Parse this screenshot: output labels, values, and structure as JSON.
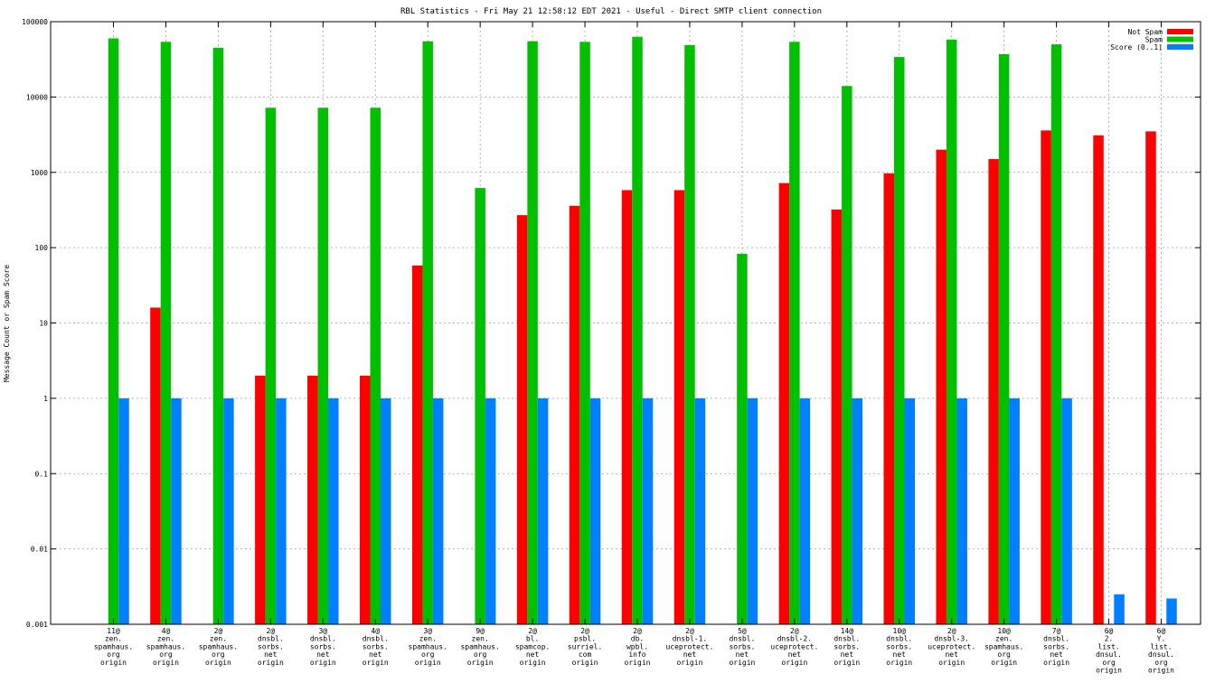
{
  "chart_data": {
    "type": "bar",
    "title": "RBL Statistics - Fri May 21 12:58:12 EDT 2021 - Useful - Direct SMTP client connection",
    "xlabel": "",
    "ylabel": "Message Count or Spam Score",
    "yscale": "log",
    "ylim": [
      0.001,
      100000
    ],
    "yticks": [
      "0.001",
      "0.01",
      "0.1",
      "1",
      "10",
      "100",
      "1000",
      "10000",
      "100000"
    ],
    "grid": true,
    "legend_position": "top-right",
    "categories": [
      [
        "11@",
        "zen.",
        "spamhaus.",
        "org",
        "origin"
      ],
      [
        "4@",
        "zen.",
        "spamhaus.",
        "org",
        "origin"
      ],
      [
        "2@",
        "zen.",
        "spamhaus.",
        "org",
        "origin"
      ],
      [
        "2@",
        "dnsbl.",
        "sorbs.",
        "net",
        "origin"
      ],
      [
        "3@",
        "dnsbl.",
        "sorbs.",
        "net",
        "origin"
      ],
      [
        "4@",
        "dnsbl.",
        "sorbs.",
        "net",
        "origin"
      ],
      [
        "3@",
        "zen.",
        "spamhaus.",
        "org",
        "origin"
      ],
      [
        "9@",
        "zen.",
        "spamhaus.",
        "org",
        "origin"
      ],
      [
        "2@",
        "bl.",
        "spamcop.",
        "net",
        "origin"
      ],
      [
        "2@",
        "psbl.",
        "surriel.",
        "com",
        "origin"
      ],
      [
        "2@",
        "db.",
        "wpbl.",
        "info",
        "origin"
      ],
      [
        "2@",
        "dnsbl-1.",
        "uceprotect.",
        "net",
        "origin"
      ],
      [
        "5@",
        "dnsbl.",
        "sorbs.",
        "net",
        "origin"
      ],
      [
        "2@",
        "dnsbl-2.",
        "uceprotect.",
        "net",
        "origin"
      ],
      [
        "14@",
        "dnsbl.",
        "sorbs.",
        "net",
        "origin"
      ],
      [
        "10@",
        "dnsbl.",
        "sorbs.",
        "net",
        "origin"
      ],
      [
        "2@",
        "dnsbl-3.",
        "uceprotect.",
        "net",
        "origin"
      ],
      [
        "10@",
        "zen.",
        "spamhaus.",
        "org",
        "origin"
      ],
      [
        "7@",
        "dnsbl.",
        "sorbs.",
        "net",
        "origin"
      ],
      [
        "6@",
        "2.",
        "list.",
        "dnsul.",
        "org",
        "origin"
      ],
      [
        "6@",
        "Y.",
        "list.",
        "dnsul.",
        "org",
        "origin"
      ]
    ],
    "series": [
      {
        "name": "Not Spam",
        "color": "#ff0000",
        "values": [
          null,
          16,
          null,
          2,
          2,
          2,
          58,
          null,
          270,
          360,
          580,
          580,
          null,
          720,
          320,
          970,
          2000,
          1500,
          3600,
          3100,
          3500
        ]
      },
      {
        "name": "Spam",
        "color": "#00c000",
        "values": [
          60000,
          54000,
          45000,
          7200,
          7200,
          7200,
          55000,
          620,
          55000,
          54000,
          63000,
          49000,
          83,
          54000,
          14000,
          34000,
          58000,
          37000,
          50000,
          null,
          null
        ]
      },
      {
        "name": "Score (0..1)",
        "color": "#0080ff",
        "values": [
          1,
          1,
          1,
          1,
          1,
          1,
          1,
          1,
          1,
          1,
          1,
          1,
          1,
          1,
          1,
          1,
          1,
          1,
          1,
          0.0025,
          0.0022
        ]
      }
    ]
  }
}
